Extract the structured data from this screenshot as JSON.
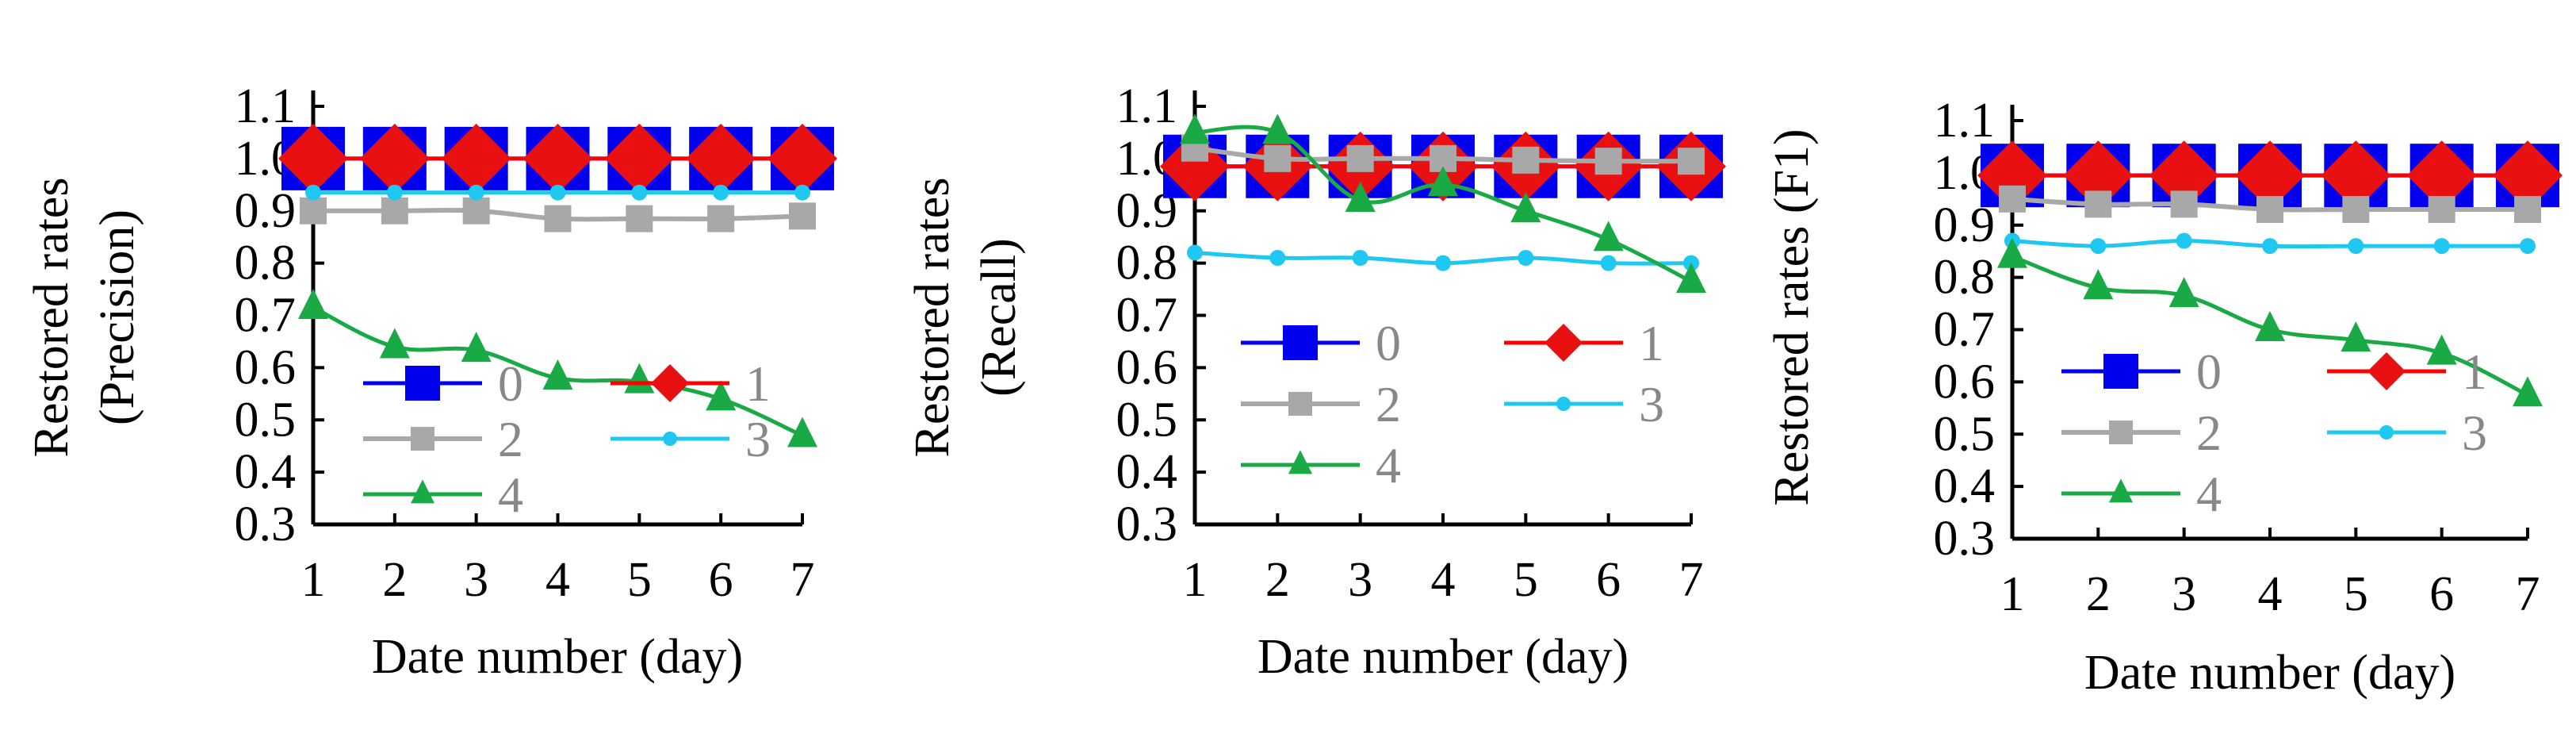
{
  "colors": {
    "axis": "#000000",
    "tick_text": "#000000",
    "legend_text": "#888888",
    "s0": "#0000ee",
    "s1": "#e81010",
    "s1_line": "#ff0000",
    "s2": "#a8a8a8",
    "s3": "#1ec8f0",
    "s4": "#1aaa45"
  },
  "chart_data": [
    {
      "type": "line",
      "ylabel": [
        "Restored rates",
        "(Precision)"
      ],
      "xlabel": "Date number (day)",
      "x": [
        1,
        2,
        3,
        4,
        5,
        6,
        7
      ],
      "ylim": [
        0.3,
        1.1
      ],
      "yticks": [
        "0.3",
        "0.4",
        "0.5",
        "0.6",
        "0.7",
        "0.8",
        "0.9",
        "1.0",
        "1.1"
      ],
      "legend": [
        "0",
        "1",
        "2",
        "3",
        "4"
      ],
      "series": [
        {
          "name": "0",
          "marker": "square",
          "values": [
            1.0,
            1.0,
            1.0,
            1.0,
            1.0,
            1.0,
            1.0
          ]
        },
        {
          "name": "1",
          "marker": "diamond",
          "values": [
            1.0,
            1.0,
            1.0,
            1.0,
            1.0,
            1.0,
            1.0
          ]
        },
        {
          "name": "2",
          "marker": "smallsquare",
          "values": [
            0.9,
            0.9,
            0.9,
            0.885,
            0.885,
            0.885,
            0.89
          ]
        },
        {
          "name": "3",
          "marker": "circle",
          "values": [
            0.935,
            0.935,
            0.935,
            0.935,
            0.935,
            0.935,
            0.935
          ]
        },
        {
          "name": "4",
          "marker": "triangle",
          "values": [
            0.715,
            0.64,
            0.633,
            0.58,
            0.573,
            0.54,
            0.47
          ]
        }
      ]
    },
    {
      "type": "line",
      "ylabel": [
        "Restored rates",
        "(Recall)"
      ],
      "xlabel": "Date number (day)",
      "x": [
        1,
        2,
        3,
        4,
        5,
        6,
        7
      ],
      "ylim": [
        0.3,
        1.1
      ],
      "yticks": [
        "0.3",
        "0.4",
        "0.5",
        "0.6",
        "0.7",
        "0.8",
        "0.9",
        "1.0",
        "1.1"
      ],
      "legend": [
        "0",
        "1",
        "2",
        "3",
        "4"
      ],
      "series": [
        {
          "name": "0",
          "marker": "square",
          "values": [
            0.985,
            0.985,
            0.985,
            0.985,
            0.985,
            0.985,
            0.985
          ]
        },
        {
          "name": "1",
          "marker": "diamond",
          "values": [
            0.985,
            0.985,
            0.985,
            0.985,
            0.985,
            0.985,
            0.985
          ]
        },
        {
          "name": "2",
          "marker": "smallsquare",
          "values": [
            1.02,
            1.0,
            1.0,
            1.0,
            0.997,
            0.995,
            0.995
          ]
        },
        {
          "name": "3",
          "marker": "circle",
          "values": [
            0.82,
            0.81,
            0.81,
            0.8,
            0.81,
            0.8,
            0.8
          ]
        },
        {
          "name": "4",
          "marker": "triangle",
          "values": [
            1.05,
            1.05,
            0.92,
            0.95,
            0.9,
            0.845,
            0.765
          ]
        }
      ]
    },
    {
      "type": "line",
      "ylabel": [
        "Restored rates (F1)"
      ],
      "xlabel": "Date number (day)",
      "x": [
        1,
        2,
        3,
        4,
        5,
        6,
        7
      ],
      "ylim": [
        0.3,
        1.1
      ],
      "yticks": [
        "0.3",
        "0.4",
        "0.5",
        "0.6",
        "0.7",
        "0.8",
        "0.9",
        "1.0",
        "1.1"
      ],
      "legend": [
        "0",
        "1",
        "2",
        "3",
        "4"
      ],
      "series": [
        {
          "name": "0",
          "marker": "square",
          "values": [
            0.995,
            0.995,
            0.995,
            0.995,
            0.995,
            0.995,
            0.995
          ]
        },
        {
          "name": "1",
          "marker": "diamond",
          "values": [
            0.995,
            0.995,
            0.995,
            0.995,
            0.995,
            0.995,
            0.995
          ]
        },
        {
          "name": "2",
          "marker": "smallsquare",
          "values": [
            0.95,
            0.94,
            0.94,
            0.93,
            0.93,
            0.93,
            0.93
          ]
        },
        {
          "name": "3",
          "marker": "circle",
          "values": [
            0.87,
            0.86,
            0.87,
            0.86,
            0.86,
            0.86,
            0.86
          ]
        },
        {
          "name": "4",
          "marker": "triangle",
          "values": [
            0.84,
            0.78,
            0.765,
            0.7,
            0.68,
            0.655,
            0.575
          ]
        }
      ]
    }
  ]
}
